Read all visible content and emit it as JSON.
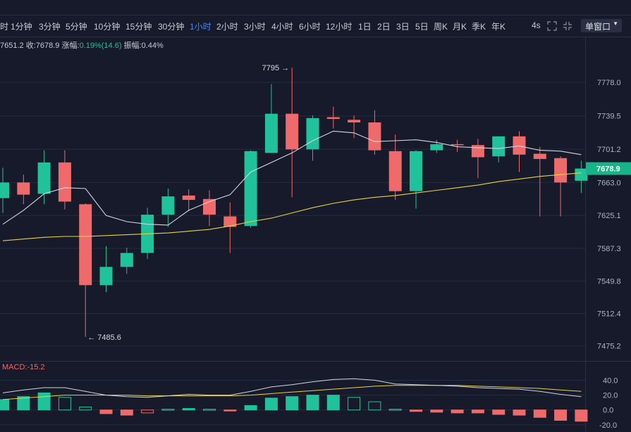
{
  "toolbar": {
    "timeframes": [
      {
        "label": "时",
        "active": false
      },
      {
        "label": "1分钟",
        "active": false
      },
      {
        "label": "3分钟",
        "active": false
      },
      {
        "label": "5分钟",
        "active": false
      },
      {
        "label": "10分钟",
        "active": false
      },
      {
        "label": "15分钟",
        "active": false
      },
      {
        "label": "30分钟",
        "active": false
      },
      {
        "label": "1小时",
        "active": true
      },
      {
        "label": "2小时",
        "active": false
      },
      {
        "label": "3小时",
        "active": false
      },
      {
        "label": "4小时",
        "active": false
      },
      {
        "label": "6小时",
        "active": false
      },
      {
        "label": "12小时",
        "active": false
      },
      {
        "label": "1日",
        "active": false
      },
      {
        "label": "2日",
        "active": false
      },
      {
        "label": "3日",
        "active": false
      },
      {
        "label": "5日",
        "active": false
      },
      {
        "label": "周K",
        "active": false
      },
      {
        "label": "月K",
        "active": false
      },
      {
        "label": "季K",
        "active": false
      },
      {
        "label": "年K",
        "active": false
      }
    ],
    "interval_tag": "4s",
    "window_select": "单窗口",
    "window_caret": "▼"
  },
  "info": {
    "open_fragment": "7651.2",
    "close_label": "收:",
    "close_value": "7678.9",
    "change_label": "涨幅:",
    "change_value": "0.19%(14.6)",
    "amplitude_label": "振幅:",
    "amplitude_value": "0.44%"
  },
  "macd_label": "MACD:-15.2",
  "colors": {
    "up": "#1fc29a",
    "down": "#ef6b6b",
    "ma_short": "#d2d6e2",
    "ma_long": "#e8d33a",
    "background": "#161a2a",
    "grid": "#262b3d",
    "price_tag": "#16b489"
  },
  "chart_data": [
    {
      "type": "candlestick",
      "title": "",
      "y_ticks": [
        7778.0,
        7739.5,
        7701.2,
        7663.0,
        7625.1,
        7587.3,
        7549.8,
        7512.4,
        7475.2
      ],
      "ylim": [
        7466,
        7808
      ],
      "last_price": "7678.9",
      "high_annotation": {
        "label": "7795 →",
        "value": 7795
      },
      "low_annotation": {
        "label": "← 7485.6",
        "value": 7485.6
      },
      "candles": [
        {
          "open": 7645,
          "high": 7680,
          "low": 7628,
          "close": 7663
        },
        {
          "open": 7663,
          "high": 7672,
          "low": 7638,
          "close": 7649
        },
        {
          "open": 7650,
          "high": 7700,
          "low": 7638,
          "close": 7686
        },
        {
          "open": 7686,
          "high": 7700,
          "low": 7632,
          "close": 7641
        },
        {
          "open": 7638,
          "high": 7639,
          "low": 7485.6,
          "close": 7545
        },
        {
          "open": 7545,
          "high": 7590,
          "low": 7537,
          "close": 7566
        },
        {
          "open": 7566,
          "high": 7588,
          "low": 7558,
          "close": 7582
        },
        {
          "open": 7582,
          "high": 7634,
          "low": 7575,
          "close": 7626
        },
        {
          "open": 7626,
          "high": 7656,
          "low": 7612,
          "close": 7647
        },
        {
          "open": 7648,
          "high": 7655,
          "low": 7630,
          "close": 7643
        },
        {
          "open": 7644,
          "high": 7654,
          "low": 7613,
          "close": 7626
        },
        {
          "open": 7624,
          "high": 7640,
          "low": 7582,
          "close": 7612
        },
        {
          "open": 7613,
          "high": 7700,
          "low": 7611,
          "close": 7699
        },
        {
          "open": 7697,
          "high": 7776,
          "low": 7697,
          "close": 7742
        },
        {
          "open": 7742,
          "high": 7795,
          "low": 7646,
          "close": 7701
        },
        {
          "open": 7701,
          "high": 7740,
          "low": 7688,
          "close": 7737
        },
        {
          "open": 7738,
          "high": 7750,
          "low": 7725,
          "close": 7736
        },
        {
          "open": 7735,
          "high": 7740,
          "low": 7714,
          "close": 7732
        },
        {
          "open": 7732,
          "high": 7746,
          "low": 7695,
          "close": 7700
        },
        {
          "open": 7699,
          "high": 7718,
          "low": 7643,
          "close": 7653
        },
        {
          "open": 7653,
          "high": 7700,
          "low": 7633,
          "close": 7699
        },
        {
          "open": 7700,
          "high": 7712,
          "low": 7697,
          "close": 7707
        },
        {
          "open": 7707,
          "high": 7712,
          "low": 7698,
          "close": 7706
        },
        {
          "open": 7706,
          "high": 7713,
          "low": 7668,
          "close": 7692
        },
        {
          "open": 7693,
          "high": 7716,
          "low": 7686,
          "close": 7716
        },
        {
          "open": 7716,
          "high": 7722,
          "low": 7675,
          "close": 7695
        },
        {
          "open": 7696,
          "high": 7704,
          "low": 7624,
          "close": 7690
        },
        {
          "open": 7691,
          "high": 7693,
          "low": 7624,
          "close": 7663
        },
        {
          "open": 7665,
          "high": 7688,
          "low": 7651,
          "close": 7679
        }
      ],
      "ma_short": [
        7615,
        7631,
        7650,
        7657,
        7656,
        7625,
        7618,
        7615,
        7614,
        7631,
        7641,
        7649,
        7675,
        7686,
        7697,
        7711,
        7722,
        7720,
        7710,
        7711,
        7712,
        7709,
        7704,
        7703,
        7702,
        7705,
        7700,
        7699,
        7695
      ],
      "ma_long": [
        7596,
        7598,
        7600,
        7601,
        7601,
        7602,
        7603,
        7604,
        7605,
        7607,
        7609,
        7613,
        7618,
        7622,
        7628,
        7634,
        7639,
        7643,
        7646,
        7648,
        7651,
        7654,
        7657,
        7660,
        7664,
        7667,
        7670,
        7672,
        7674
      ]
    },
    {
      "type": "bar",
      "title": "MACD",
      "y_ticks": [
        40.0,
        20.0,
        0.0,
        -20.0
      ],
      "ylim": [
        -24,
        48
      ],
      "histogram": [
        14,
        18,
        23,
        17,
        4,
        -5,
        -7,
        -4,
        1,
        2,
        1,
        -1,
        6,
        16,
        18,
        20,
        20,
        17,
        11,
        1,
        -2,
        -3,
        -4,
        -4,
        -6,
        -7,
        -10,
        -14,
        -15.2
      ],
      "dif": [
        23,
        27,
        30,
        30,
        25,
        20,
        18,
        17,
        19,
        21,
        20,
        20,
        25,
        31,
        34,
        38,
        41,
        42,
        40,
        35,
        34,
        33,
        32,
        30,
        29,
        28,
        25,
        21,
        18
      ],
      "dea": [
        14,
        16,
        18,
        20,
        20,
        20,
        20,
        19,
        19,
        19,
        19,
        19,
        20,
        22,
        24,
        26,
        28,
        30,
        32,
        33,
        33,
        33,
        33,
        32,
        31,
        30,
        29,
        27,
        25
      ]
    }
  ]
}
